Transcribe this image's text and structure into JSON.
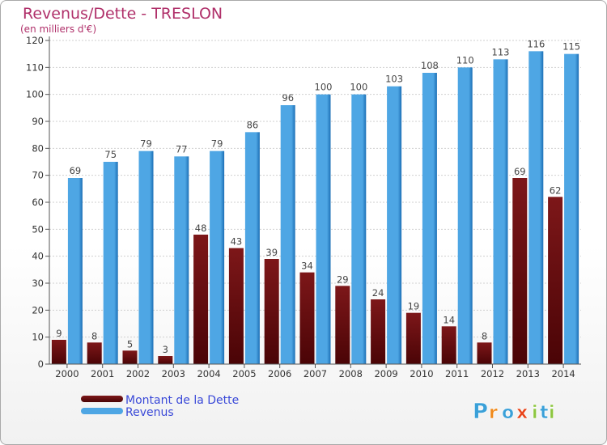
{
  "colors": {
    "debt": "#7d1719",
    "debt_dark": "#4a0406",
    "revenue": "#4ea6e4",
    "revenue_dark": "#1c6fb5",
    "title": "#b0306a",
    "legend_text": "#3a49d8"
  },
  "logo": {
    "letters": [
      "P",
      "r",
      "o",
      "x",
      "i",
      "t",
      "i"
    ],
    "colors": [
      "#3aa0d8",
      "#f08a1c",
      "#3aa0d8",
      "#e8441a",
      "#8cc63f",
      "#3aa0d8",
      "#8cc63f"
    ]
  },
  "chart_data": {
    "type": "bar",
    "title": "Revenus/Dette - TRESLON",
    "subtitle": "(en milliers d'€)",
    "xlabel": "",
    "ylabel": "",
    "ylim": [
      0,
      120
    ],
    "yticks": [
      0,
      10,
      20,
      30,
      40,
      50,
      60,
      70,
      80,
      90,
      100,
      110,
      120
    ],
    "grid": true,
    "legend_position": "bottom-left",
    "categories": [
      "2000",
      "2001",
      "2002",
      "2003",
      "2004",
      "2005",
      "2006",
      "2007",
      "2008",
      "2009",
      "2010",
      "2011",
      "2012",
      "2013",
      "2014"
    ],
    "series": [
      {
        "name": "Montant de la Dette",
        "values": [
          9,
          8,
          5,
          3,
          48,
          43,
          39,
          34,
          29,
          24,
          19,
          14,
          8,
          69,
          62
        ]
      },
      {
        "name": "Revenus",
        "values": [
          69,
          75,
          79,
          77,
          79,
          86,
          96,
          100,
          100,
          103,
          108,
          110,
          113,
          116,
          115
        ]
      }
    ]
  }
}
